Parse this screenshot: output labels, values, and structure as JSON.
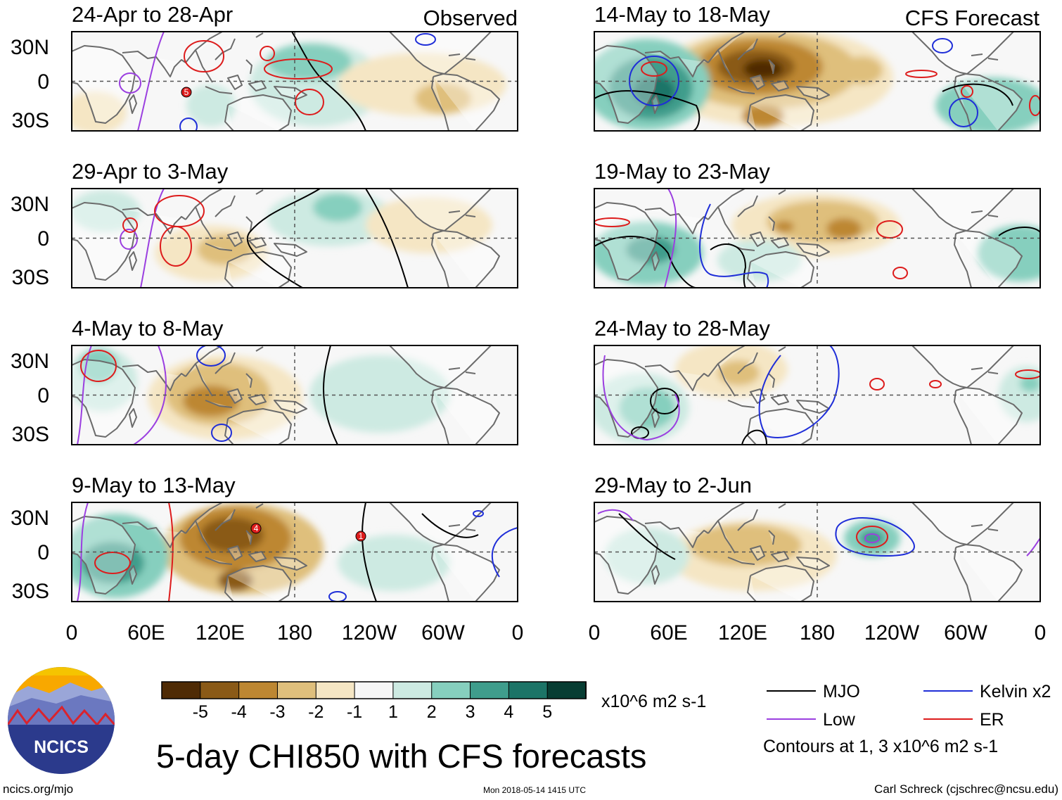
{
  "header": {
    "observed_label": "Observed",
    "forecast_label": "CFS Forecast"
  },
  "panels": {
    "observed": [
      {
        "title": "24-Apr to 28-Apr"
      },
      {
        "title": "29-Apr to 3-May"
      },
      {
        "title": "4-May to 8-May"
      },
      {
        "title": "9-May to 13-May"
      }
    ],
    "forecast": [
      {
        "title": "14-May to 18-May"
      },
      {
        "title": "19-May to 23-May"
      },
      {
        "title": "24-May to 28-May"
      },
      {
        "title": "29-May to 2-Jun"
      }
    ]
  },
  "axes": {
    "lat_labels": [
      "30N",
      "0",
      "30S"
    ],
    "lon_labels": [
      "0",
      "60E",
      "120E",
      "180",
      "120W",
      "60W",
      "0"
    ]
  },
  "colorbar": {
    "tick_labels": [
      "-5",
      "-4",
      "-3",
      "-2",
      "-1",
      "1",
      "2",
      "3",
      "4",
      "5"
    ],
    "colors": [
      "#4f2b05",
      "#8a5a17",
      "#bd8732",
      "#dfbf7c",
      "#f5e6c4",
      "#f7f7f7",
      "#cdeae2",
      "#86cfbe",
      "#3f9d8c",
      "#1c7467",
      "#073d33"
    ],
    "units": "x10^6 m2 s-1"
  },
  "legend": {
    "items": [
      {
        "label": "MJO",
        "color": "#000000"
      },
      {
        "label": "Kelvin x2",
        "color": "#1f2ed8"
      },
      {
        "label": "Low",
        "color": "#9b3fe0"
      },
      {
        "label": "ER",
        "color": "#dd1c1c"
      }
    ],
    "note": "Contours at 1, 3 x10^6 m2 s-1"
  },
  "logo": {
    "text": "NCICS"
  },
  "main_title": "5-day CHI850 with CFS forecasts",
  "footer": {
    "url": "ncics.org/mjo",
    "timestamp": "Mon 2018-05-14 1415 UTC",
    "author": "Carl Schreck (cjschrec@ncsu.edu)"
  },
  "storm_markers": [
    {
      "panel": "24-Apr to 28-Apr",
      "label": "5"
    },
    {
      "panel": "9-May to 13-May",
      "label": "4"
    },
    {
      "panel": "9-May to 13-May",
      "label": "1"
    }
  ]
}
